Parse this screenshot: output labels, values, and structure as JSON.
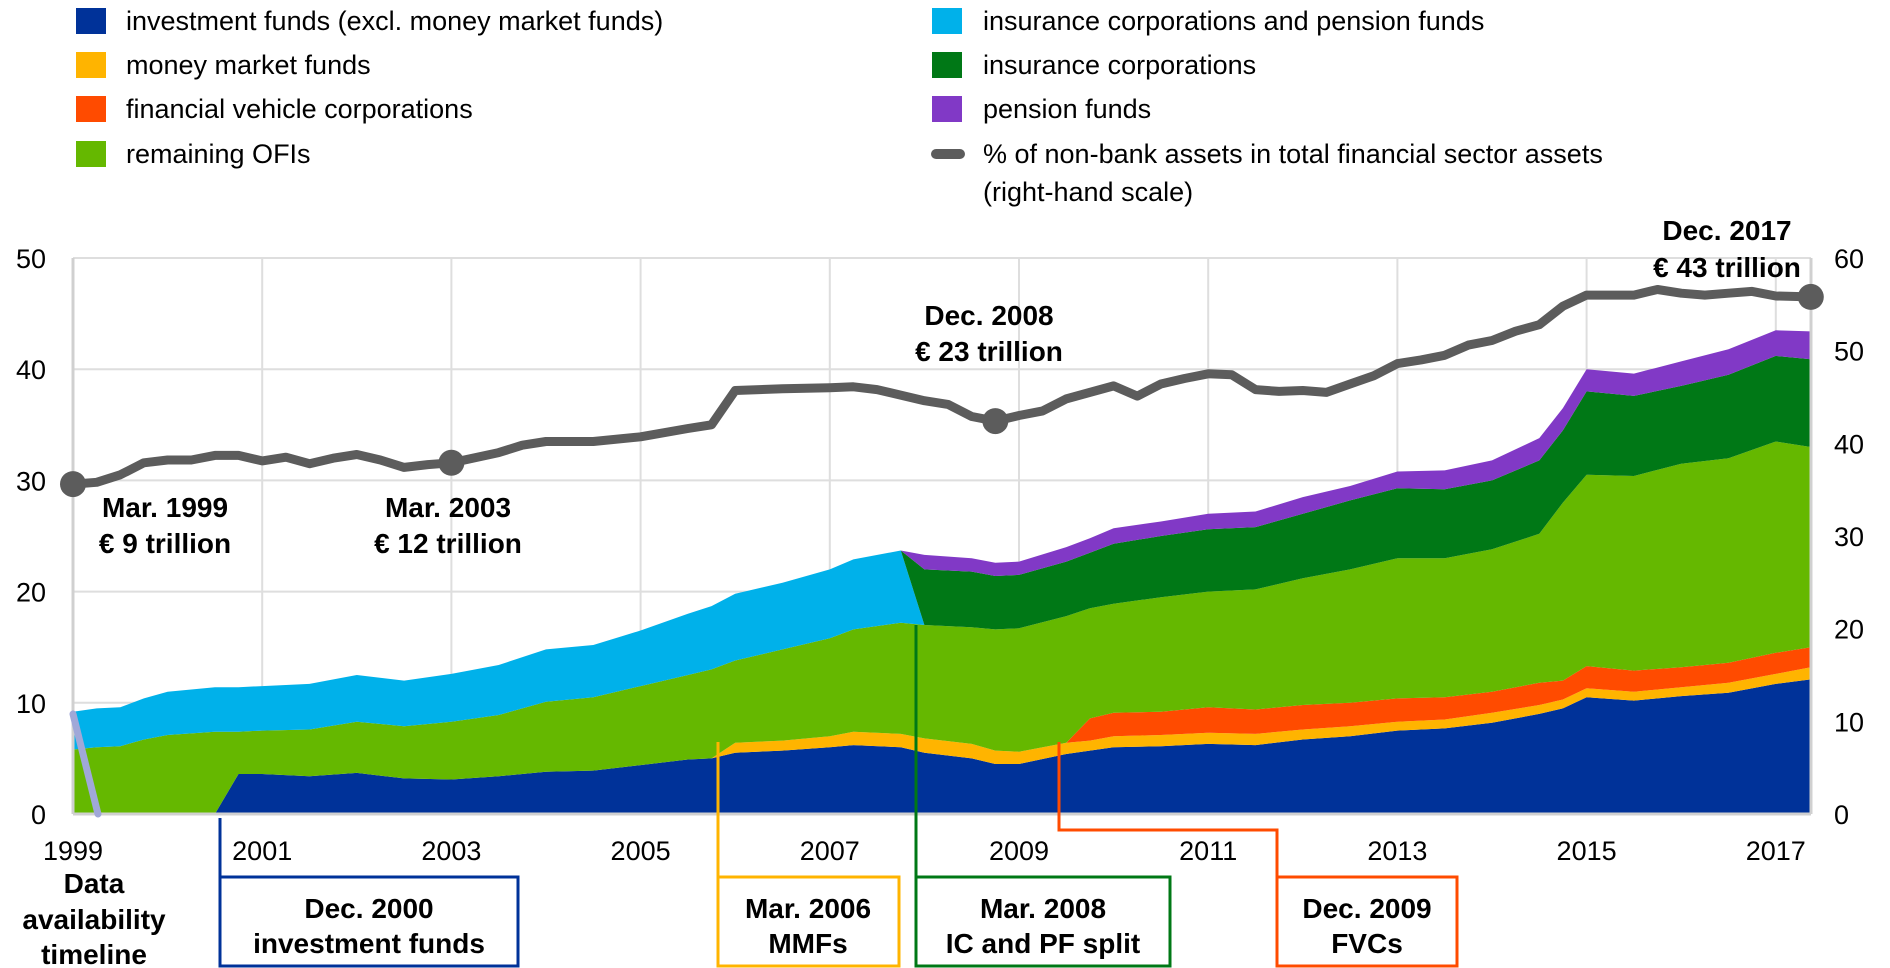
{
  "legend": [
    {
      "label": "investment funds (excl. money market funds)",
      "color": "#003299"
    },
    {
      "label": "money market funds",
      "color": "#FFB400"
    },
    {
      "label": "financial vehicle corporations",
      "color": "#FF4B00"
    },
    {
      "label": "remaining OFIs",
      "color": "#65B800"
    },
    {
      "label": "insurance corporations and pension funds",
      "color": "#00B1EA"
    },
    {
      "label": "insurance corporations",
      "color": "#007816"
    },
    {
      "label": "pension funds",
      "color": "#8139C6"
    },
    {
      "label": "% of non-bank assets in total financial sector assets",
      "label2": "(right-hand scale)",
      "color": "#5C5C5C"
    }
  ],
  "annotations": {
    "mar1999": {
      "l1": "Mar. 1999",
      "l2": "€ 9 trillion"
    },
    "mar2003": {
      "l1": "Mar. 2003",
      "l2": "€ 12 trillion"
    },
    "dec2008": {
      "l1": "Dec. 2008",
      "l2": "€ 23 trillion"
    },
    "dec2017": {
      "l1": "Dec. 2017",
      "l2": "€ 43 trillion"
    }
  },
  "timeline": {
    "label": [
      "Data",
      "availability",
      "timeline"
    ],
    "boxes": [
      {
        "l1": "Dec. 2000",
        "l2": "investment funds",
        "color": "#003299"
      },
      {
        "l1": "Mar. 2006",
        "l2": "MMFs",
        "color": "#FFB400"
      },
      {
        "l1": "Mar. 2008",
        "l2": "IC and PF split",
        "color": "#007816"
      },
      {
        "l1": "Dec. 2009",
        "l2": "FVCs",
        "color": "#FF4B00"
      }
    ]
  },
  "chart_data": {
    "type": "area",
    "stacked": true,
    "x_ticks": [
      "1999",
      "2001",
      "2003",
      "2005",
      "2007",
      "2009",
      "2011",
      "2013",
      "2015",
      "2017"
    ],
    "y_left": {
      "range": [
        0,
        50
      ],
      "ticks": [
        "0",
        "10",
        "20",
        "30",
        "40",
        "50"
      ],
      "unit": "EUR trillion"
    },
    "y_right": {
      "range": [
        0,
        60
      ],
      "ticks": [
        "0",
        "10",
        "20",
        "30",
        "40",
        "50",
        "60"
      ],
      "unit": "%"
    },
    "grid": true,
    "legend_position": "top",
    "x": [
      1999.0,
      1999.25,
      1999.5,
      1999.75,
      2000.0,
      2000.5,
      2000.75,
      2001.0,
      2001.5,
      2002.0,
      2002.5,
      2003.0,
      2003.5,
      2004.0,
      2004.5,
      2005.0,
      2005.5,
      2005.75,
      2006.0,
      2006.5,
      2007.0,
      2007.25,
      2007.75,
      2008.0,
      2008.5,
      2008.75,
      2009.0,
      2009.5,
      2009.75,
      2010.0,
      2010.5,
      2011.0,
      2011.5,
      2012.0,
      2012.5,
      2013.0,
      2013.5,
      2014.0,
      2014.5,
      2014.75,
      2015.0,
      2015.5,
      2016.0,
      2016.5,
      2017.0,
      2017.37
    ],
    "series": [
      {
        "name": "investment funds (excl. money market funds)",
        "values": [
          null,
          null,
          null,
          null,
          null,
          0,
          3.6,
          3.6,
          3.4,
          3.7,
          3.2,
          3.1,
          3.4,
          3.8,
          3.9,
          4.4,
          4.9,
          5.0,
          5.5,
          5.7,
          6.0,
          6.2,
          6.0,
          5.5,
          5.0,
          4.5,
          4.5,
          5.4,
          5.7,
          6.0,
          6.1,
          6.3,
          6.2,
          6.7,
          7.0,
          7.5,
          7.7,
          8.2,
          9.0,
          9.5,
          10.5,
          10.2,
          10.6,
          10.9,
          11.7,
          12.1
        ]
      },
      {
        "name": "money market funds",
        "values": [
          null,
          null,
          null,
          null,
          null,
          null,
          null,
          null,
          null,
          null,
          null,
          null,
          null,
          null,
          null,
          null,
          null,
          0,
          0.9,
          0.9,
          1.0,
          1.2,
          1.2,
          1.3,
          1.3,
          1.2,
          1.1,
          1.0,
          0.9,
          1.0,
          1.0,
          1.0,
          1.0,
          0.9,
          0.9,
          0.8,
          0.8,
          0.9,
          0.8,
          0.8,
          0.8,
          0.8,
          0.8,
          0.9,
          0.9,
          1.1
        ]
      },
      {
        "name": "financial vehicle corporations",
        "values": [
          null,
          null,
          null,
          null,
          null,
          null,
          null,
          null,
          null,
          null,
          null,
          null,
          null,
          null,
          null,
          null,
          null,
          null,
          null,
          null,
          null,
          null,
          null,
          null,
          null,
          null,
          null,
          0,
          2.0,
          2.1,
          2.1,
          2.3,
          2.2,
          2.2,
          2.1,
          2.1,
          2.0,
          1.9,
          2.0,
          1.7,
          2.0,
          1.9,
          1.8,
          1.8,
          1.9,
          1.8
        ]
      },
      {
        "name": "remaining OFIs",
        "values": [
          5.8,
          6.0,
          6.1,
          6.7,
          7.1,
          7.4,
          3.8,
          3.9,
          4.2,
          4.6,
          4.7,
          5.2,
          5.5,
          6.3,
          6.6,
          7.1,
          7.6,
          8.0,
          7.4,
          8.2,
          8.8,
          9.2,
          10.0,
          10.2,
          10.5,
          10.9,
          11.1,
          11.4,
          9.9,
          9.8,
          10.3,
          10.4,
          10.8,
          11.4,
          12.0,
          12.6,
          12.5,
          12.8,
          13.4,
          16.0,
          17.2,
          17.5,
          18.3,
          18.4,
          19.0,
          18.0
        ]
      },
      {
        "name": "insurance corporations and pension funds",
        "values": [
          3.4,
          3.5,
          3.5,
          3.7,
          3.9,
          4.0,
          4.0,
          4.0,
          4.1,
          4.2,
          4.1,
          4.3,
          4.5,
          4.7,
          4.7,
          5.0,
          5.5,
          5.7,
          6.0,
          6.0,
          6.2,
          6.3,
          6.5,
          0,
          null,
          null,
          null,
          null,
          null,
          null,
          null,
          null,
          null,
          null,
          null,
          null,
          null,
          null,
          null,
          null,
          null,
          null,
          null,
          null,
          null,
          null
        ]
      },
      {
        "name": "insurance corporations",
        "values": [
          null,
          null,
          null,
          null,
          null,
          null,
          null,
          null,
          null,
          null,
          null,
          null,
          null,
          null,
          null,
          null,
          null,
          null,
          null,
          null,
          null,
          null,
          0,
          5.0,
          5.0,
          4.8,
          4.8,
          4.9,
          5.0,
          5.4,
          5.5,
          5.6,
          5.6,
          5.8,
          6.2,
          6.3,
          6.2,
          6.2,
          6.6,
          6.5,
          7.5,
          7.2,
          7.0,
          7.5,
          7.7,
          7.9
        ]
      },
      {
        "name": "pension funds",
        "values": [
          null,
          null,
          null,
          null,
          null,
          null,
          null,
          null,
          null,
          null,
          null,
          null,
          null,
          null,
          null,
          null,
          null,
          null,
          null,
          null,
          null,
          null,
          0,
          1.3,
          1.2,
          1.2,
          1.2,
          1.3,
          1.3,
          1.4,
          1.3,
          1.4,
          1.4,
          1.5,
          1.3,
          1.5,
          1.7,
          1.8,
          2.0,
          2.0,
          2.0,
          2.0,
          2.2,
          2.3,
          2.3,
          2.5
        ]
      }
    ],
    "line": {
      "name": "% of non-bank assets in total financial sector assets (right-hand scale)",
      "axis": "right",
      "x": [
        1999.0,
        1999.25,
        1999.5,
        1999.75,
        2000.0,
        2000.25,
        2000.5,
        2000.75,
        2001.0,
        2001.25,
        2001.5,
        2001.75,
        2002.0,
        2002.25,
        2002.5,
        2002.75,
        2003.0,
        2003.5,
        2003.75,
        2004.0,
        2004.5,
        2005.0,
        2005.5,
        2005.75,
        2006.0,
        2006.5,
        2007.0,
        2007.25,
        2007.5,
        2008.0,
        2008.25,
        2008.5,
        2008.75,
        2009.0,
        2009.25,
        2009.5,
        2009.75,
        2010.0,
        2010.25,
        2010.5,
        2010.75,
        2011.0,
        2011.25,
        2011.5,
        2011.75,
        2012.0,
        2012.25,
        2012.5,
        2012.75,
        2013.0,
        2013.25,
        2013.5,
        2013.75,
        2014.0,
        2014.25,
        2014.5,
        2014.75,
        2015.0,
        2015.5,
        2015.75,
        2016.0,
        2016.25,
        2016.5,
        2016.75,
        2017.0,
        2017.37
      ],
      "values": [
        35.6,
        35.8,
        36.6,
        37.9,
        38.2,
        38.2,
        38.7,
        38.7,
        38.1,
        38.5,
        37.8,
        38.4,
        38.8,
        38.2,
        37.4,
        37.7,
        37.9,
        39.0,
        39.8,
        40.2,
        40.2,
        40.7,
        41.6,
        42.0,
        45.7,
        45.9,
        46.0,
        46.1,
        45.8,
        44.6,
        44.2,
        42.9,
        42.4,
        43.0,
        43.5,
        44.8,
        45.5,
        46.2,
        45.1,
        46.4,
        47.0,
        47.5,
        47.4,
        45.8,
        45.6,
        45.7,
        45.5,
        46.4,
        47.3,
        48.6,
        49.0,
        49.5,
        50.6,
        51.1,
        52.1,
        52.8,
        54.8,
        56.0,
        56.0,
        56.6,
        56.2,
        56.0,
        56.2,
        56.4,
        55.9,
        55.8
      ]
    },
    "highlighted_points": [
      "Mar. 1999",
      "Mar. 2003",
      "Dec. 2008",
      "Dec. 2017"
    ]
  }
}
